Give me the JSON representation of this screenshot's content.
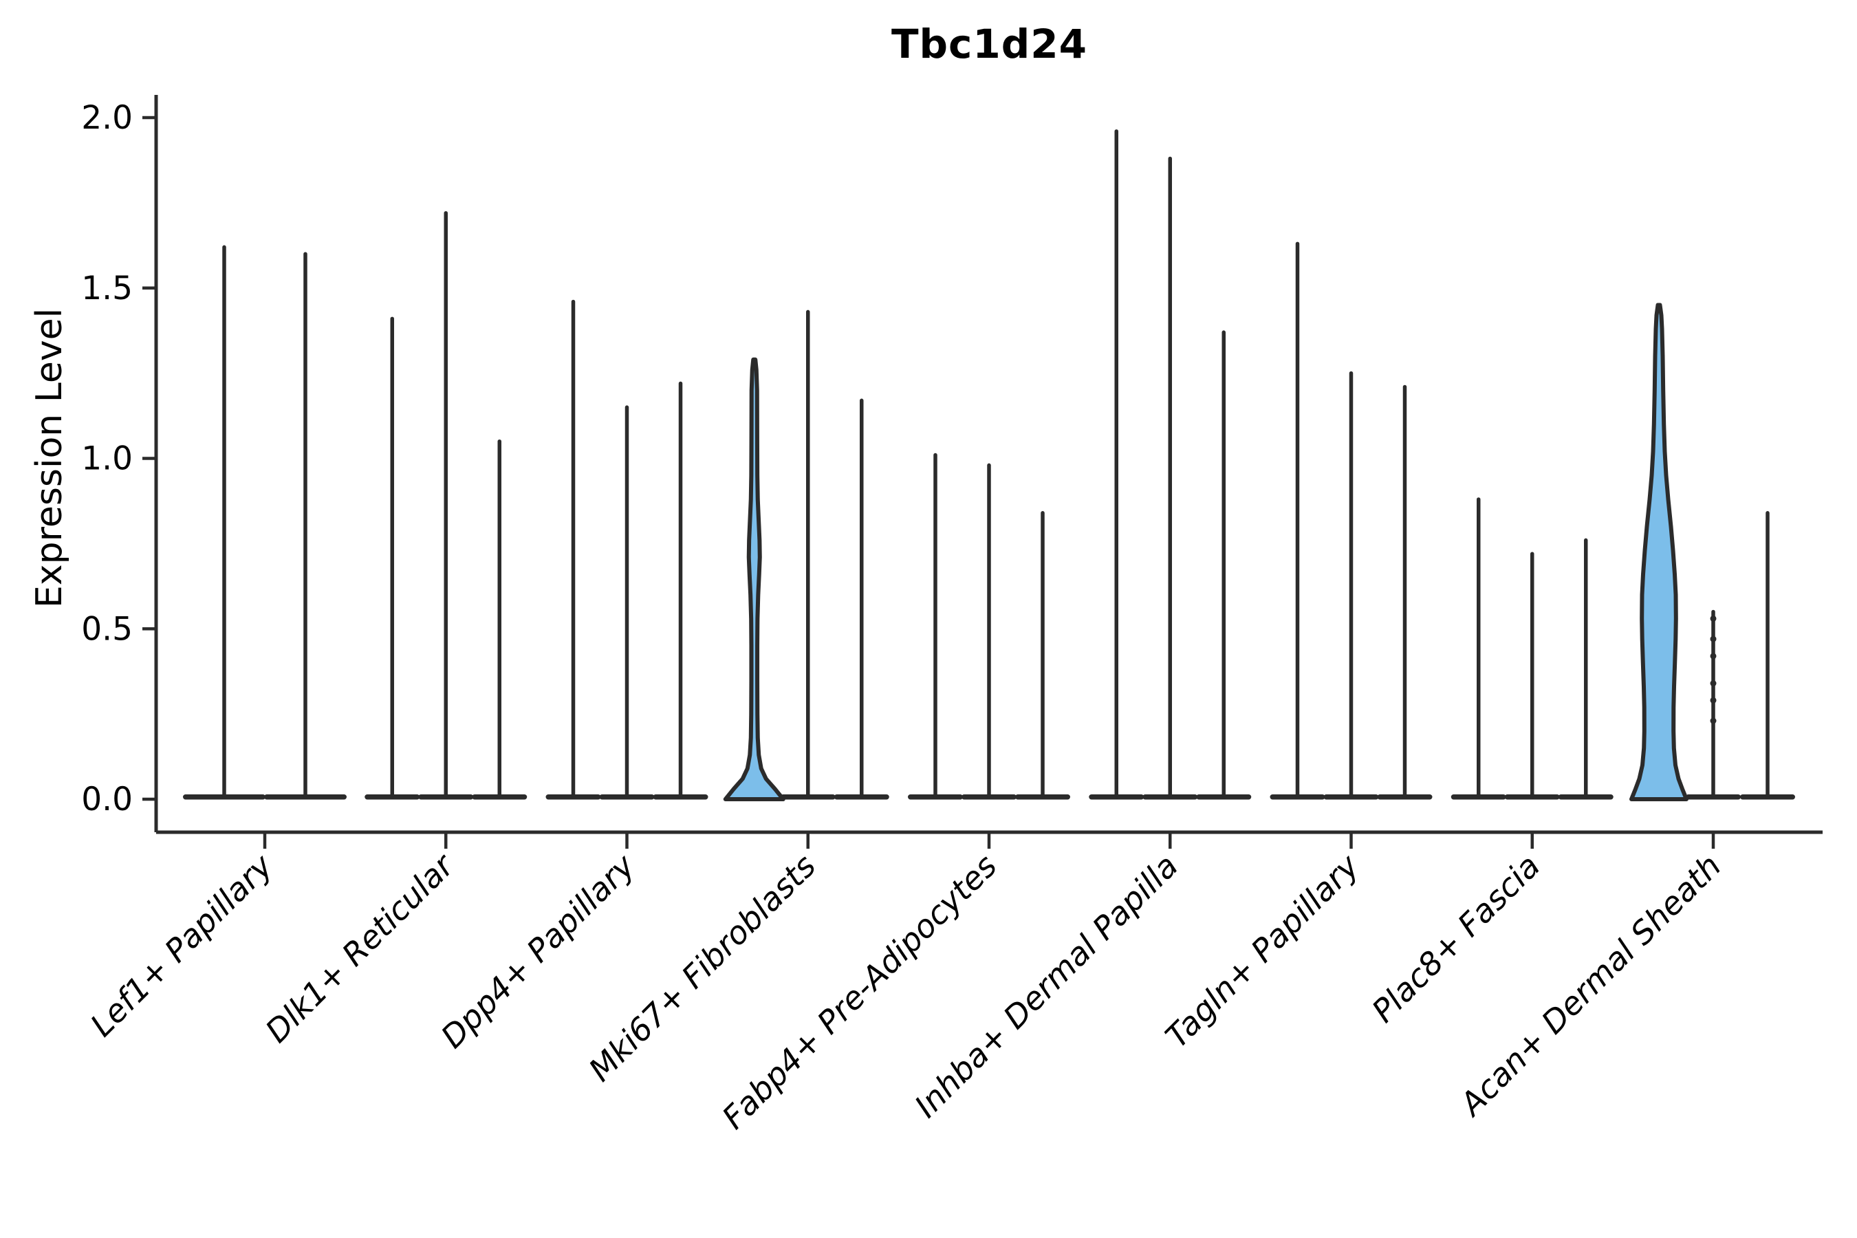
{
  "chart_data": {
    "type": "violin",
    "title": "Tbc1d24",
    "ylabel": "Expression Level",
    "ytick_labels": [
      "0.0",
      "0.5",
      "1.0",
      "1.5",
      "2.0"
    ],
    "ytick_values": [
      0.0,
      0.5,
      1.0,
      1.5,
      2.0
    ],
    "ylim": [
      -0.1,
      2.07
    ],
    "grid": false,
    "legend": "none",
    "line_color": "#2b2b2b",
    "violin_fill_color": "#7cbeea",
    "categories": [
      "Lef1+ Papillary",
      "Dlk1+ Reticular",
      "Dpp4+ Papillary",
      "Mki67+ Fibroblasts",
      "Fabp4+ Pre-Adipocytes",
      "Inhba+ Dermal Papilla",
      "Tagln+ Papillary",
      "Plac8+ Fascia",
      "Acan+ Dermal Sheath"
    ],
    "groups": [
      {
        "label": "Lef1+ Papillary",
        "violins": [
          {
            "kind": "spike",
            "dx": -59,
            "base_hw": 60,
            "max": 1.62
          },
          {
            "kind": "spike",
            "dx": 59,
            "base_hw": 60,
            "max": 1.6
          }
        ]
      },
      {
        "label": "Dlk1+ Reticular",
        "violins": [
          {
            "kind": "spike",
            "dx": -78,
            "base_hw": 40,
            "max": 1.41
          },
          {
            "kind": "spike",
            "dx": 0,
            "base_hw": 40,
            "max": 1.72
          },
          {
            "kind": "spike",
            "dx": 78,
            "base_hw": 40,
            "max": 1.05
          }
        ]
      },
      {
        "label": "Dpp4+ Papillary",
        "violins": [
          {
            "kind": "spike",
            "dx": -78,
            "base_hw": 40,
            "max": 1.46
          },
          {
            "kind": "spike",
            "dx": 0,
            "base_hw": 40,
            "max": 1.15
          },
          {
            "kind": "spike",
            "dx": 78,
            "base_hw": 40,
            "max": 1.22
          }
        ]
      },
      {
        "label": "Mki67+ Fibroblasts",
        "violins": [
          {
            "kind": "filled",
            "dx": -78,
            "base_hw": 42,
            "max": 1.29,
            "profile": [
              [
                1.29,
                1.5
              ],
              [
                1.26,
                3
              ],
              [
                1.2,
                4
              ],
              [
                1.05,
                4.2
              ],
              [
                0.95,
                4.4
              ],
              [
                0.88,
                5
              ],
              [
                0.82,
                6.3
              ],
              [
                0.76,
                7.6
              ],
              [
                0.71,
                8
              ],
              [
                0.66,
                7
              ],
              [
                0.6,
                5.6
              ],
              [
                0.53,
                4.6
              ],
              [
                0.45,
                4.3
              ],
              [
                0.35,
                4.3
              ],
              [
                0.25,
                4.5
              ],
              [
                0.18,
                5
              ],
              [
                0.13,
                6.5
              ],
              [
                0.09,
                10
              ],
              [
                0.06,
                17
              ],
              [
                0.03,
                30
              ],
              [
                0.0,
                42
              ]
            ]
          },
          {
            "kind": "spike",
            "dx": 0,
            "base_hw": 40,
            "max": 1.43
          },
          {
            "kind": "spike",
            "dx": 78,
            "base_hw": 40,
            "max": 1.17
          }
        ]
      },
      {
        "label": "Fabp4+ Pre-Adipocytes",
        "violins": [
          {
            "kind": "spike",
            "dx": -78,
            "base_hw": 40,
            "max": 1.01
          },
          {
            "kind": "spike",
            "dx": 0,
            "base_hw": 40,
            "max": 0.98
          },
          {
            "kind": "spike",
            "dx": 78,
            "base_hw": 40,
            "max": 0.84
          }
        ]
      },
      {
        "label": "Inhba+ Dermal Papilla",
        "violins": [
          {
            "kind": "spike",
            "dx": -78,
            "base_hw": 40,
            "max": 1.96
          },
          {
            "kind": "spike",
            "dx": 0,
            "base_hw": 40,
            "max": 1.88
          },
          {
            "kind": "spike",
            "dx": 78,
            "base_hw": 40,
            "max": 1.37
          }
        ]
      },
      {
        "label": "Tagln+ Papillary",
        "violins": [
          {
            "kind": "spike",
            "dx": -78,
            "base_hw": 40,
            "max": 1.63
          },
          {
            "kind": "spike",
            "dx": 0,
            "base_hw": 40,
            "max": 1.25
          },
          {
            "kind": "spike",
            "dx": 78,
            "base_hw": 40,
            "max": 1.21
          }
        ]
      },
      {
        "label": "Plac8+ Fascia",
        "violins": [
          {
            "kind": "spike",
            "dx": -78,
            "base_hw": 40,
            "max": 0.88
          },
          {
            "kind": "spike",
            "dx": 0,
            "base_hw": 40,
            "max": 0.72
          },
          {
            "kind": "spike",
            "dx": 78,
            "base_hw": 40,
            "max": 0.76
          }
        ]
      },
      {
        "label": "Acan+ Dermal Sheath",
        "violins": [
          {
            "kind": "filled",
            "dx": -79,
            "base_hw": 40,
            "max": 1.45,
            "profile": [
              [
                1.45,
                1.5
              ],
              [
                1.42,
                3.5
              ],
              [
                1.38,
                4.5
              ],
              [
                1.3,
                5.5
              ],
              [
                1.2,
                6.2
              ],
              [
                1.1,
                7.2
              ],
              [
                1.02,
                8.5
              ],
              [
                0.95,
                10.5
              ],
              [
                0.88,
                13.5
              ],
              [
                0.8,
                17.5
              ],
              [
                0.73,
                20.5
              ],
              [
                0.66,
                23
              ],
              [
                0.6,
                24.5
              ],
              [
                0.53,
                24.8
              ],
              [
                0.47,
                24.3
              ],
              [
                0.4,
                23.2
              ],
              [
                0.33,
                22
              ],
              [
                0.27,
                21.3
              ],
              [
                0.2,
                21.2
              ],
              [
                0.15,
                21.8
              ],
              [
                0.1,
                24
              ],
              [
                0.06,
                28.5
              ],
              [
                0.03,
                34
              ],
              [
                0.0,
                40
              ]
            ]
          },
          {
            "kind": "spike",
            "dx": 0,
            "base_hw": 40,
            "max": 0.55,
            "dots": [
              0.53,
              0.47,
              0.42,
              0.34,
              0.29,
              0.23
            ]
          },
          {
            "kind": "spike",
            "dx": 79,
            "base_hw": 40,
            "max": 0.84
          }
        ]
      }
    ]
  }
}
